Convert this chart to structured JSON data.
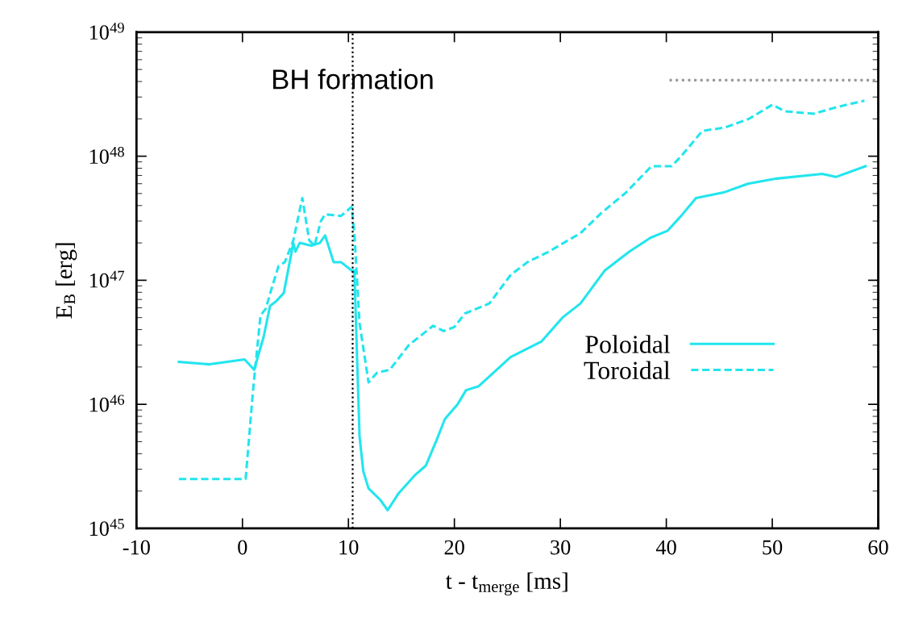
{
  "chart_data": {
    "type": "line",
    "xlabel": "t - t$_{merge}$ [ms]",
    "ylabel": "E$_{B}$ [erg]",
    "xlim": [
      -10,
      60
    ],
    "xticks": [
      -10,
      0,
      10,
      20,
      30,
      40,
      50,
      60
    ],
    "ylim": [
      1e+45,
      1e+49
    ],
    "yticks": [
      {
        "value": 1e+45,
        "label": "10$^{45}$"
      },
      {
        "value": 1e+46,
        "label": "10$^{46}$"
      },
      {
        "value": 1e+47,
        "label": "10$^{47}$"
      },
      {
        "value": 1e+48,
        "label": "10$^{48}$"
      },
      {
        "value": 1e+49,
        "label": "10$^{49}$"
      }
    ],
    "log": "y",
    "legend": "right",
    "series": [
      {
        "name": "Poloidal",
        "line_style": "solid",
        "color": "#22e5ee",
        "x": [
          -6.0,
          -3.1,
          0.2,
          1.1,
          2.0,
          2.6,
          3.2,
          3.9,
          4.8,
          5.0,
          5.4,
          6.5,
          7.3,
          7.8,
          8.6,
          9.3,
          10.3,
          10.56,
          11.05,
          11.4,
          11.9,
          13.0,
          13.7,
          14.7,
          16.3,
          17.3,
          18.3,
          19.1,
          20.3,
          21.1,
          22.3,
          25.3,
          28.2,
          30.2,
          31.9,
          34.2,
          36.5,
          38.5,
          40.1,
          41.4,
          42.8,
          45.4,
          47.7,
          50.4,
          54.7,
          56.0,
          58.8
        ],
        "values": [
          2.2e+46,
          2.1e+46,
          2.3e+46,
          1.9e+46,
          3.5e+46,
          6.2e+46,
          6.8e+46,
          7.9e+46,
          2e+47,
          1.7e+47,
          2e+47,
          1.9e+47,
          2e+47,
          2.3e+47,
          1.4e+47,
          1.4e+47,
          1.2e+47,
          1.2e+47,
          5.5e+45,
          2.9e+45,
          2.1e+45,
          1.7e+45,
          1.4e+45,
          1.9e+45,
          2.7e+45,
          3.2e+45,
          5.1e+45,
          7.6e+45,
          1e+46,
          1.3e+46,
          1.4e+46,
          2.4e+46,
          3.2e+46,
          5e+46,
          6.5e+46,
          1.2e+47,
          1.7e+47,
          2.2e+47,
          2.5e+47,
          3.3e+47,
          4.6e+47,
          5.1e+47,
          6e+47,
          6.6e+47,
          7.2e+47,
          6.8e+47,
          8.3e+47
        ]
      },
      {
        "name": "Toroidal",
        "line_style": "dashed",
        "color": "#22e5ee",
        "x": [
          -6.0,
          0.3,
          1.0,
          1.7,
          2.2,
          2.7,
          3.4,
          4.0,
          4.8,
          5.65,
          6.3,
          6.8,
          7.4,
          7.8,
          9.3,
          10.3,
          10.56,
          11.05,
          11.9,
          12.7,
          13.9,
          15.7,
          18.0,
          19.0,
          20.0,
          21.0,
          23.3,
          25.3,
          26.9,
          28.9,
          31.9,
          33.9,
          36.2,
          38.6,
          40.5,
          41.4,
          43.4,
          45.5,
          47.8,
          50.0,
          51.2,
          53.9,
          56.2,
          58.7
        ],
        "values": [
          2.5e+45,
          2.5e+45,
          1.3e+46,
          5.2e+46,
          5.9e+46,
          8.3e+46,
          1.3e+47,
          1.4e+47,
          2.1e+47,
          4.6e+47,
          2.1e+47,
          1.9e+47,
          3e+47,
          3.4e+47,
          3.3e+47,
          3.9e+47,
          2.4e+47,
          4.5e+46,
          1.5e+46,
          1.8e+46,
          1.9e+46,
          3e+46,
          4.3e+46,
          3.9e+46,
          4.2e+46,
          5.4e+46,
          6.5e+46,
          1.1e+47,
          1.4e+47,
          1.7e+47,
          2.4e+47,
          3.5e+47,
          5.1e+47,
          8.3e+47,
          8.3e+47,
          1e+48,
          1.6e+48,
          1.7e+48,
          2e+48,
          2.6e+48,
          2.3e+48,
          2.2e+48,
          2.5e+48,
          2.8e+48
        ]
      },
      {
        "line_style": "dotted",
        "color": "#999999",
        "x": [
          40.3,
          60
        ],
        "values": [
          4.1e+48,
          4.1e+48
        ]
      }
    ],
    "ref_lines": [
      {
        "axis": "x",
        "value": 10.4,
        "label": "BH formation",
        "color": "#000000",
        "line_style": "dotted"
      }
    ]
  }
}
